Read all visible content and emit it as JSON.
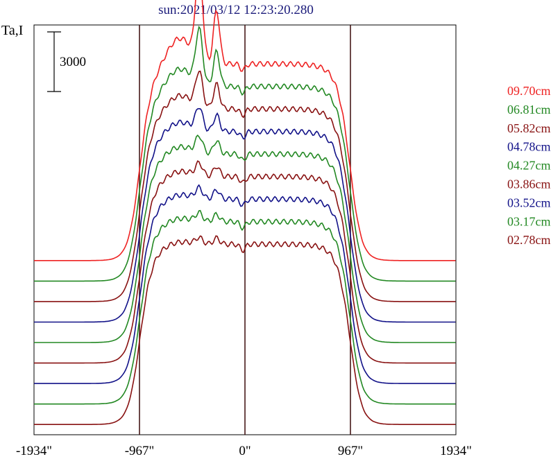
{
  "chart_data": {
    "type": "line",
    "title": "sun:2021/03/12 12:23:20.280",
    "ylabel": "Ta,I",
    "scale_bar_label": "3000",
    "scale_bar_value": 3000,
    "xlim": [
      -1934,
      1934
    ],
    "x_ticks": [
      {
        "value": -1934,
        "label": "-1934\""
      },
      {
        "value": -967,
        "label": "-967\""
      },
      {
        "value": 0,
        "label": "0\""
      },
      {
        "value": 967,
        "label": "967\""
      },
      {
        "value": 1934,
        "label": "1934\""
      }
    ],
    "reference_lines_x": [
      -967,
      0,
      967
    ],
    "series": [
      {
        "name": "09.70cm",
        "color": "#ee2222",
        "offset": 8000,
        "disk": 9600,
        "bumps": [
          4500,
          2600,
          1300
        ]
      },
      {
        "name": "06.81cm",
        "color": "#228822",
        "offset": 7000,
        "disk": 9500,
        "bumps": [
          2600,
          1700,
          900
        ]
      },
      {
        "name": "05.82cm",
        "color": "#881111",
        "offset": 6000,
        "disk": 9400,
        "bumps": [
          1700,
          1200,
          700
        ]
      },
      {
        "name": "04.78cm",
        "color": "#111188",
        "offset": 5000,
        "disk": 9300,
        "bumps": [
          1100,
          800,
          500
        ]
      },
      {
        "name": "04.27cm",
        "color": "#228822",
        "offset": 4000,
        "disk": 9200,
        "bumps": [
          800,
          650,
          400
        ]
      },
      {
        "name": "03.86cm",
        "color": "#881111",
        "offset": 3000,
        "disk": 9100,
        "bumps": [
          600,
          500,
          300
        ]
      },
      {
        "name": "03.52cm",
        "color": "#111188",
        "offset": 2000,
        "disk": 9000,
        "bumps": [
          500,
          450,
          250
        ]
      },
      {
        "name": "03.17cm",
        "color": "#228822",
        "offset": 1000,
        "disk": 8900,
        "bumps": [
          400,
          350,
          200
        ]
      },
      {
        "name": "02.78cm",
        "color": "#881111",
        "offset": 0,
        "disk": 8800,
        "bumps": [
          300,
          300,
          150
        ]
      }
    ],
    "ylim": [
      -500,
      19500
    ],
    "grid": false,
    "legend_position": "right"
  }
}
